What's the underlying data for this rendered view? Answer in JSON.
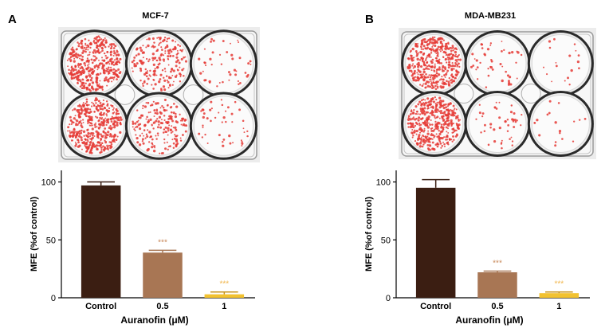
{
  "panels": [
    {
      "letter": "A",
      "photo_title": "MCF-7",
      "plate_wells": [
        {
          "row": 1,
          "col": 1,
          "colony_level": "dense"
        },
        {
          "row": 1,
          "col": 2,
          "colony_level": "medium"
        },
        {
          "row": 1,
          "col": 3,
          "colony_level": "sparse"
        },
        {
          "row": 2,
          "col": 1,
          "colony_level": "dense"
        },
        {
          "row": 2,
          "col": 2,
          "colony_level": "medium"
        },
        {
          "row": 2,
          "col": 3,
          "colony_level": "sparse"
        }
      ]
    },
    {
      "letter": "B",
      "photo_title": "MDA-MB231",
      "plate_wells": [
        {
          "row": 1,
          "col": 1,
          "colony_level": "dense"
        },
        {
          "row": 1,
          "col": 2,
          "colony_level": "sparse"
        },
        {
          "row": 1,
          "col": 3,
          "colony_level": "very-sparse"
        },
        {
          "row": 2,
          "col": 1,
          "colony_level": "dense"
        },
        {
          "row": 2,
          "col": 2,
          "colony_level": "sparse"
        },
        {
          "row": 2,
          "col": 3,
          "colony_level": "very-sparse"
        }
      ]
    }
  ],
  "colors": {
    "colony": "#e53935",
    "bar_control": "#3b1e12",
    "bar_low": "#a87654",
    "bar_high": "#f2c230",
    "significance": "#c8895a",
    "significance_high": "#f0b54a"
  },
  "chart_data": [
    {
      "type": "bar",
      "categories": [
        "Control",
        "0.5",
        "1"
      ],
      "values": [
        97,
        39,
        3
      ],
      "errors": [
        3,
        2,
        2
      ],
      "significance": [
        "",
        "***",
        "***"
      ],
      "xlabel": "Auranofin (μM)",
      "ylabel": "MFE (%of control)",
      "ylim": [
        0,
        110
      ],
      "yticks": [
        0,
        50,
        100
      ],
      "grid": false
    },
    {
      "type": "bar",
      "categories": [
        "Control",
        "0.5",
        "1"
      ],
      "values": [
        95,
        22,
        4
      ],
      "errors": [
        7,
        1,
        1
      ],
      "significance": [
        "",
        "***",
        "***"
      ],
      "xlabel": "Auranofin (μM)",
      "ylabel": "MFE (%of control)",
      "ylim": [
        0,
        110
      ],
      "yticks": [
        0,
        50,
        100
      ],
      "grid": false
    }
  ]
}
